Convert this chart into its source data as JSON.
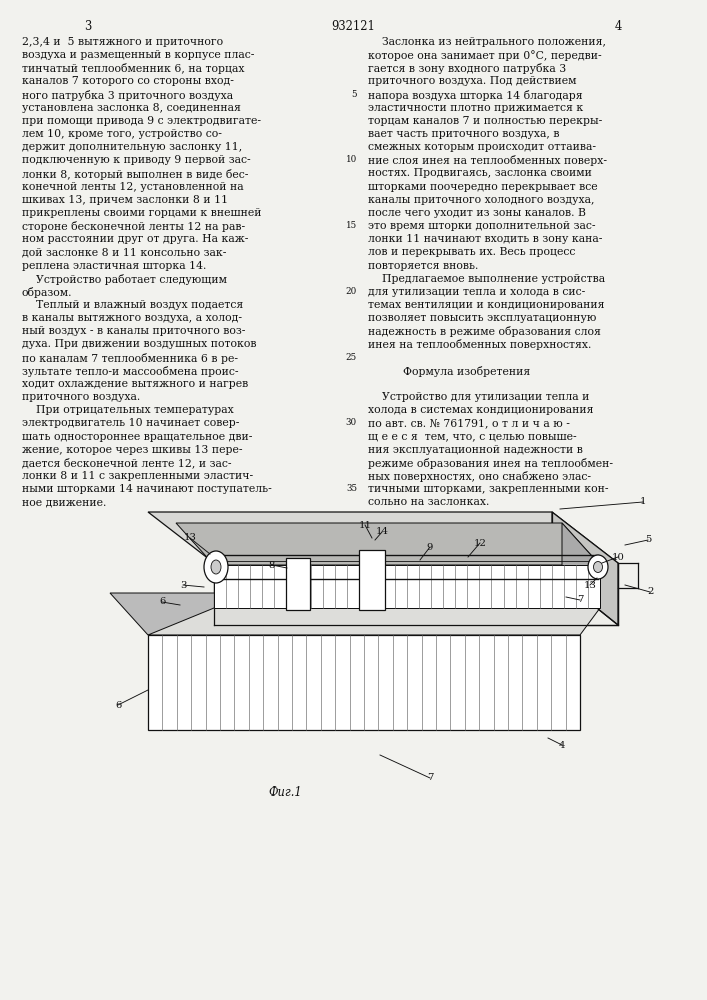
{
  "bg_color": "#f2f2ee",
  "text_color": "#111111",
  "patent_number": "932121",
  "page_left": "3",
  "page_right": "4",
  "font_size_body": 7.8,
  "font_size_label": 7.2,
  "left_col_text_lines": [
    "2,3,4 и  5 вытяжного и приточного",
    "воздуха и размещенный в корпусе плас-",
    "тинчатый теплообменник 6, на торцах",
    "каналов 7 которого со стороны вход-",
    "ного патрубка 3 приточного воздуха",
    "установлена заслонка 8, соединенная",
    "при помощи привода 9 с электродвигате-",
    "лем 10, кроме того, устройство со-",
    "держит дополнительную заслонку 11,",
    "подключенную к приводу 9 первой зас-",
    "лонки 8, который выполнен в виде бес-",
    "конечной ленты 12, установленной на",
    "шкивах 13, причем заслонки 8 и 11",
    "прикреплены своими горцами к внешней",
    "стороне бесконечной ленты 12 на рав-",
    "ном расстоянии друг от друга. На каж-",
    "дой заслонке 8 и 11 консольно зак-",
    "реплена эластичная шторка 14.",
    "    Устройство работает следующим",
    "образом.",
    "    Теплый и влажный воздух подается",
    "в каналы вытяжного воздуха, а холод-",
    "ный воздух - в каналы приточного воз-",
    "духа. При движении воздушных потоков",
    "по каналам 7 теплообменника 6 в ре-",
    "зультате тепло-и массообмена проис-",
    "ходит охлаждение вытяжного и нагрев",
    "приточного воздуха.",
    "    При отрицательных температурах",
    "электродвигатель 10 начинает совер-",
    "шать одностороннее вращательное дви-",
    "жение, которое через шкивы 13 пере-",
    "дается бесконечной ленте 12, и зас-",
    "лонки 8 и 11 с закрепленными эластич-",
    "ными шторками 14 начинают поступатель-",
    "ное движение."
  ],
  "right_col_text_lines": [
    "    Заслонка из нейтрального положения,",
    "которое она занимает при 0°С, передви-",
    "гается в зону входного патрубка 3",
    "приточного воздуха. Под действием",
    "напора воздуха шторка 14 благодаря",
    "эластичности плотно прижимается к",
    "торцам каналов 7 и полностью перекры-",
    "вает часть приточного воздуха, в",
    "смежных которым происходит оттаива-",
    "ние слоя инея на теплообменных поверх-",
    "ностях. Продвигаясь, заслонка своими",
    "шторками поочередно перекрывает все",
    "каналы приточного холодного воздуха,",
    "после чего уходит из зоны каналов. В",
    "это время шторки дополнительной зас-",
    "лонки 11 начинают входить в зону кана-",
    "лов и перекрывать их. Весь процесс",
    "повторяется вновь.",
    "    Предлагаемое выполнение устройства",
    "для утилизации тепла и холода в сис-",
    "темах вентиляции и кондиционирования",
    "позволяет повысить эксплуатационную",
    "надежность в режиме образования слоя",
    "инея на теплообменных поверхностях.",
    "",
    "          Формула изобретения",
    "",
    "    Устройство для утилизации тепла и",
    "холода в системах кондиционирования",
    "по авт. св. № 761791, о т л и ч а ю -",
    "щ е е с я  тем, что, с целью повыше-",
    "ния эксплуатационной надежности в",
    "режиме образования инея на теплообмен-",
    "ных поверхностях, оно снабжено элас-",
    "тичными шторками, закрепленными кон-",
    "сольно на заслонках."
  ],
  "line_numbers": [
    5,
    10,
    15,
    20,
    25,
    30,
    35
  ],
  "fig_caption": "Фиг.1"
}
